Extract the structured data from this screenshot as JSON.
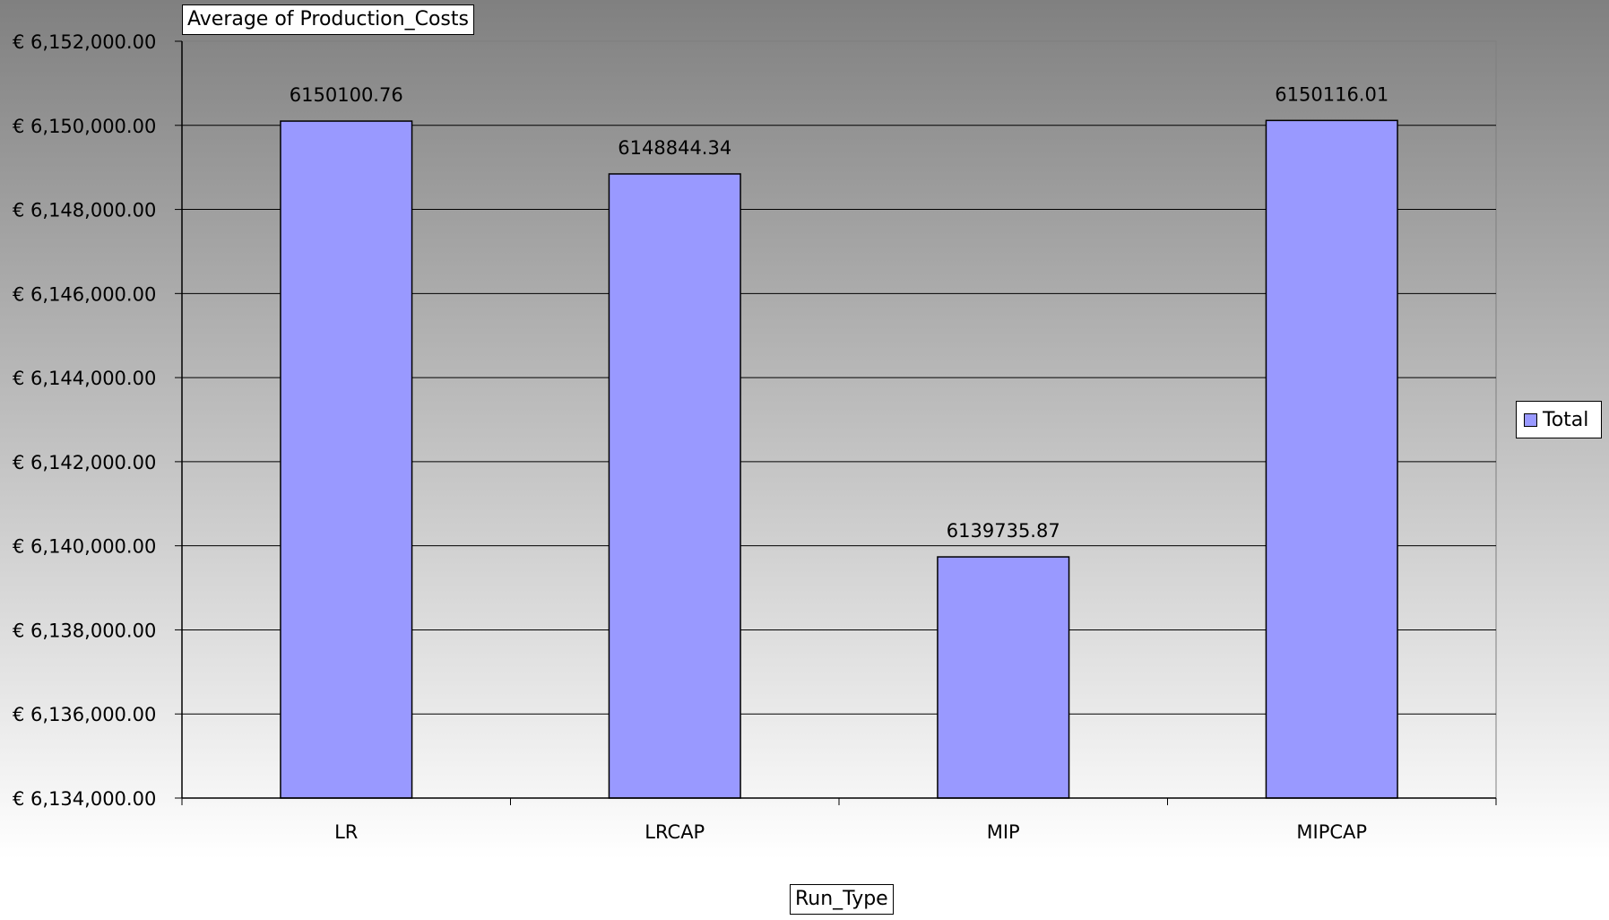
{
  "chart_data": {
    "type": "bar",
    "title": "",
    "data_field": "Average of Production_Costs",
    "xlabel": "Run_Type",
    "ylabel": "",
    "categories": [
      "LR",
      "LRCAP",
      "MIP",
      "MIPCAP"
    ],
    "series": [
      {
        "name": "Total",
        "values": [
          6150100.76,
          6148844.34,
          6139735.87,
          6150116.01
        ]
      }
    ],
    "data_labels": [
      "6150100.76",
      "6148844.34",
      "6139735.87",
      "6150116.01"
    ],
    "ylim": [
      6134000,
      6152000
    ],
    "y_ticks": [
      "€ 6,152,000.00",
      "€ 6,150,000.00",
      "€ 6,148,000.00",
      "€ 6,146,000.00",
      "€ 6,144,000.00",
      "€ 6,142,000.00",
      "€ 6,140,000.00",
      "€ 6,138,000.00",
      "€ 6,136,000.00",
      "€ 6,134,000.00"
    ],
    "grid": true,
    "legend": "right",
    "colors": {
      "bar_fill": "#9999ff",
      "bar_stroke": "#000000",
      "gridline": "#000000",
      "background_top": "#808080",
      "background_bottom": "#ffffff"
    }
  }
}
